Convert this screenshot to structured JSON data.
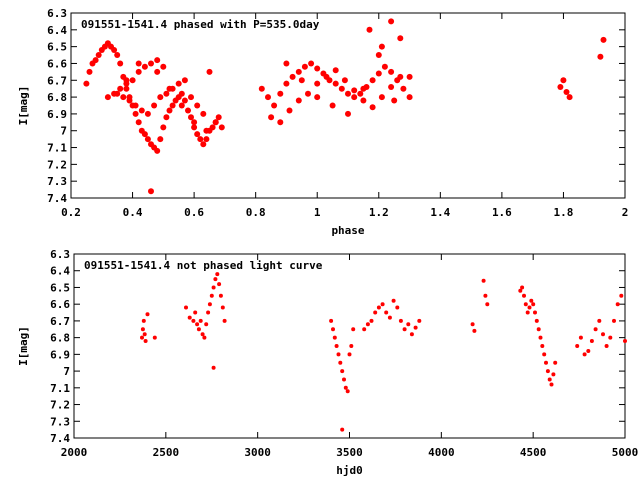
{
  "chart_data": [
    {
      "type": "scatter",
      "title": "091551-1541.4 phased with P=535.0day",
      "xlabel": "phase",
      "ylabel": "I[mag]",
      "xlim": [
        0.2,
        2.0
      ],
      "ylim": [
        7.4,
        6.3
      ],
      "y_inverted": true,
      "grid": false,
      "marker_color": "#ff0000",
      "marker": "filled-circle",
      "xticks": [
        "0.2",
        "0.4",
        "0.6",
        "0.8",
        "1",
        "1.2",
        "1.4",
        "1.6",
        "1.8",
        "2"
      ],
      "yticks": [
        "6.3",
        "6.4",
        "6.5",
        "6.6",
        "6.7",
        "6.8",
        "6.9",
        "7",
        "7.1",
        "7.2",
        "7.3",
        "7.4"
      ],
      "series": [
        {
          "x": [
            0.25,
            0.26,
            0.27,
            0.28,
            0.29,
            0.3,
            0.31,
            0.32,
            0.33,
            0.34,
            0.35,
            0.36,
            0.37,
            0.38,
            0.39,
            0.4,
            0.41,
            0.42,
            0.43,
            0.44,
            0.45,
            0.46,
            0.47,
            0.48,
            0.49,
            0.5,
            0.51,
            0.52,
            0.53,
            0.54,
            0.55,
            0.56,
            0.57,
            0.58,
            0.59,
            0.6,
            0.61,
            0.62,
            0.63,
            0.64,
            0.65,
            0.66,
            0.67,
            0.68,
            0.69,
            0.32,
            0.34,
            0.36,
            0.38,
            0.4,
            0.42,
            0.44,
            0.46,
            0.48,
            0.5,
            0.35,
            0.37,
            0.39,
            0.41,
            0.43,
            0.45,
            0.47,
            0.49,
            0.51,
            0.53,
            0.55,
            0.57,
            0.59,
            0.61,
            0.63,
            0.65,
            0.67,
            0.46,
            0.38,
            0.42,
            0.48,
            0.52,
            0.56,
            0.6,
            0.64
          ],
          "y": [
            6.72,
            6.65,
            6.6,
            6.58,
            6.55,
            6.52,
            6.5,
            6.48,
            6.5,
            6.52,
            6.55,
            6.6,
            6.68,
            6.75,
            6.8,
            6.85,
            6.9,
            6.95,
            7.0,
            7.02,
            7.05,
            7.08,
            7.1,
            7.12,
            7.05,
            6.98,
            6.92,
            6.88,
            6.85,
            6.82,
            6.8,
            6.78,
            6.82,
            6.88,
            6.92,
            6.98,
            7.02,
            7.05,
            7.08,
            7.05,
            7.0,
            6.98,
            6.95,
            6.92,
            6.98,
            6.8,
            6.78,
            6.75,
            6.72,
            6.7,
            6.65,
            6.62,
            6.6,
            6.58,
            6.62,
            6.78,
            6.8,
            6.82,
            6.85,
            6.88,
            6.9,
            6.85,
            6.8,
            6.78,
            6.75,
            6.72,
            6.7,
            6.8,
            6.85,
            6.9,
            6.65,
            6.95,
            7.36,
            6.7,
            6.6,
            6.65,
            6.75,
            6.85,
            6.95,
            7.0
          ]
        },
        {
          "x": [
            0.82,
            0.84,
            0.86,
            0.88,
            0.9,
            0.92,
            0.94,
            0.96,
            0.98,
            1.0,
            1.02,
            1.04,
            1.06,
            1.08,
            1.1,
            1.12,
            1.14,
            1.16,
            1.18,
            1.2,
            1.22,
            1.24,
            1.26,
            1.28,
            1.3,
            0.85,
            0.88,
            0.91,
            0.94,
            0.97,
            1.0,
            1.03,
            1.06,
            1.09,
            1.12,
            1.15,
            1.18,
            1.21,
            1.24,
            1.27,
            0.9,
            0.95,
            1.0,
            1.05,
            1.1,
            1.15,
            1.2,
            1.25,
            1.3,
            1.17,
            1.21,
            1.24,
            1.27,
            1.79,
            1.8,
            1.81,
            1.82,
            1.92,
            1.93
          ],
          "y": [
            6.75,
            6.8,
            6.85,
            6.78,
            6.72,
            6.68,
            6.65,
            6.62,
            6.6,
            6.63,
            6.66,
            6.7,
            6.72,
            6.75,
            6.78,
            6.8,
            6.78,
            6.74,
            6.7,
            6.66,
            6.62,
            6.65,
            6.7,
            6.75,
            6.8,
            6.92,
            6.95,
            6.88,
            6.82,
            6.78,
            6.72,
            6.68,
            6.64,
            6.7,
            6.76,
            6.82,
            6.86,
            6.8,
            6.74,
            6.68,
            6.6,
            6.7,
            6.8,
            6.85,
            6.9,
            6.75,
            6.55,
            6.82,
            6.68,
            6.4,
            6.5,
            6.35,
            6.45,
            6.74,
            6.7,
            6.77,
            6.8,
            6.56,
            6.46
          ]
        }
      ]
    },
    {
      "type": "scatter",
      "title": "091551-1541.4 not phased light curve",
      "xlabel": "hjd0",
      "ylabel": "I[mag]",
      "xlim": [
        2000,
        5000
      ],
      "ylim": [
        7.4,
        6.3
      ],
      "y_inverted": true,
      "grid": false,
      "marker_color": "#ff0000",
      "marker": "filled-circle",
      "xticks": [
        "2000",
        "2500",
        "3000",
        "3500",
        "4000",
        "4500",
        "5000"
      ],
      "yticks": [
        "6.3",
        "6.4",
        "6.5",
        "6.6",
        "6.7",
        "6.8",
        "6.9",
        "7",
        "7.1",
        "7.2",
        "7.3",
        "7.4"
      ],
      "series": [
        {
          "x": [
            2370,
            2375,
            2380,
            2385,
            2390,
            2400,
            2440,
            2610,
            2630,
            2650,
            2660,
            2670,
            2680,
            2690,
            2700,
            2710,
            2720,
            2730,
            2740,
            2750,
            2760,
            2770,
            2780,
            2790,
            2800,
            2810,
            2820,
            2760,
            3400,
            3410,
            3420,
            3430,
            3440,
            3450,
            3460,
            3470,
            3480,
            3490,
            3500,
            3510,
            3520,
            3460,
            3580,
            3600,
            3620,
            3640,
            3660,
            3680,
            3700,
            3720,
            3740,
            3760,
            3780,
            3800,
            3820,
            3840,
            3860,
            3880,
            4170,
            4180,
            4230,
            4240,
            4250,
            4430,
            4440,
            4450,
            4460,
            4470,
            4480,
            4490,
            4500,
            4510,
            4520,
            4530,
            4540,
            4550,
            4560,
            4570,
            4580,
            4590,
            4600,
            4610,
            4620,
            4740,
            4760,
            4780,
            4800,
            4820,
            4840,
            4860,
            4880,
            4900,
            4920,
            4940,
            4960,
            4980,
            5000
          ],
          "y": [
            6.8,
            6.75,
            6.7,
            6.78,
            6.82,
            6.66,
            6.8,
            6.62,
            6.68,
            6.7,
            6.65,
            6.72,
            6.75,
            6.7,
            6.78,
            6.8,
            6.72,
            6.65,
            6.6,
            6.55,
            6.5,
            6.45,
            6.42,
            6.48,
            6.55,
            6.62,
            6.7,
            6.98,
            6.7,
            6.75,
            6.8,
            6.85,
            6.9,
            6.95,
            7.0,
            7.05,
            7.1,
            7.12,
            6.9,
            6.85,
            6.75,
            7.35,
            6.75,
            6.72,
            6.7,
            6.65,
            6.62,
            6.6,
            6.65,
            6.68,
            6.58,
            6.62,
            6.7,
            6.75,
            6.72,
            6.78,
            6.74,
            6.7,
            6.72,
            6.76,
            6.46,
            6.55,
            6.6,
            6.52,
            6.5,
            6.55,
            6.6,
            6.65,
            6.62,
            6.58,
            6.6,
            6.65,
            6.7,
            6.75,
            6.8,
            6.85,
            6.9,
            6.95,
            7.0,
            7.05,
            7.08,
            7.02,
            6.95,
            6.85,
            6.8,
            6.9,
            6.88,
            6.82,
            6.75,
            6.7,
            6.78,
            6.85,
            6.8,
            6.7,
            6.6,
            6.55,
            6.82
          ]
        }
      ]
    }
  ]
}
